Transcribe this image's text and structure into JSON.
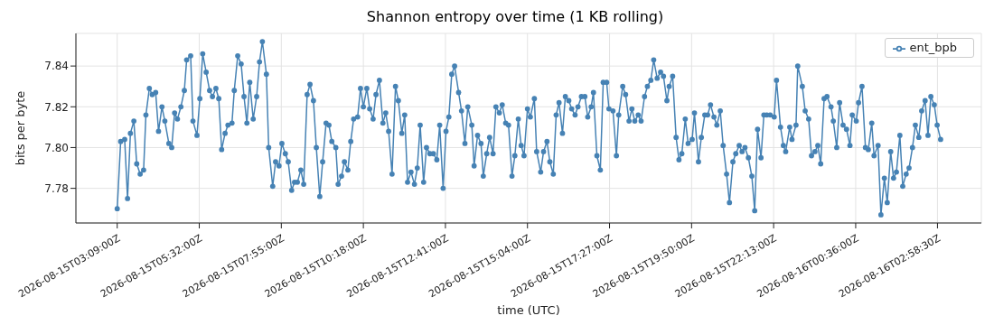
{
  "chart_data": {
    "type": "line",
    "title": "Shannon entropy over time (1 KB rolling)",
    "xlabel": "time (UTC)",
    "ylabel": "bits per byte",
    "x": [
      "2026-08-15T03:09",
      "2026-08-15T03:15",
      "2026-08-15T03:22",
      "2026-08-15T03:27",
      "2026-08-15T03:32",
      "2026-08-15T03:38",
      "2026-08-15T03:43",
      "2026-08-15T03:49",
      "2026-08-15T03:55",
      "2026-08-15T03:59",
      "2026-08-15T04:05",
      "2026-08-15T04:10",
      "2026-08-15T04:16",
      "2026-08-15T04:21",
      "2026-08-15T04:27",
      "2026-08-15T04:32",
      "2026-08-15T04:39",
      "2026-08-15T04:44",
      "2026-08-15T04:49",
      "2026-08-15T04:54",
      "2026-08-15T05:00",
      "2026-08-15T05:06",
      "2026-08-15T05:10",
      "2026-08-15T05:17",
      "2026-08-15T05:21",
      "2026-08-15T05:28",
      "2026-08-15T05:33",
      "2026-08-15T05:38",
      "2026-08-15T05:44",
      "2026-08-15T05:50",
      "2026-08-15T05:55",
      "2026-08-15T06:01",
      "2026-08-15T06:06",
      "2026-08-15T06:11",
      "2026-08-15T06:17",
      "2026-08-15T06:22",
      "2026-08-15T06:29",
      "2026-08-15T06:33",
      "2026-08-15T06:39",
      "2026-08-15T06:45",
      "2026-08-15T06:50",
      "2026-08-15T06:55",
      "2026-08-15T07:00",
      "2026-08-15T07:06",
      "2026-08-15T07:12",
      "2026-08-15T07:17",
      "2026-08-15T07:22",
      "2026-08-15T07:29",
      "2026-08-15T07:33",
      "2026-08-15T07:40",
      "2026-08-15T07:45",
      "2026-08-15T07:51",
      "2026-08-15T07:56",
      "2026-08-15T08:02",
      "2026-08-15T08:07",
      "2026-08-15T08:13",
      "2026-08-15T08:18",
      "2026-08-15T08:23",
      "2026-08-15T08:29",
      "2026-08-15T08:34",
      "2026-08-15T08:40",
      "2026-08-15T08:45",
      "2026-08-15T08:51",
      "2026-08-15T08:56",
      "2026-08-15T09:02",
      "2026-08-15T09:07",
      "2026-08-15T09:13",
      "2026-08-15T09:18",
      "2026-08-15T09:23",
      "2026-08-15T09:30",
      "2026-08-15T09:34",
      "2026-08-15T09:40",
      "2026-08-15T09:45",
      "2026-08-15T09:51",
      "2026-08-15T09:56",
      "2026-08-15T10:01",
      "2026-08-15T10:08",
      "2026-08-15T10:13",
      "2026-08-15T10:18",
      "2026-08-15T10:24",
      "2026-08-15T10:29",
      "2026-08-15T10:35",
      "2026-08-15T10:40",
      "2026-08-15T10:46",
      "2026-08-15T10:52",
      "2026-08-15T10:57",
      "2026-08-15T11:02",
      "2026-08-15T11:08",
      "2026-08-15T11:14",
      "2026-08-15T11:19",
      "2026-08-15T11:25",
      "2026-08-15T11:30",
      "2026-08-15T11:35",
      "2026-08-15T11:41",
      "2026-08-15T11:47",
      "2026-08-15T11:52",
      "2026-08-15T11:57",
      "2026-08-15T12:03",
      "2026-08-15T12:08",
      "2026-08-15T12:14",
      "2026-08-15T12:20",
      "2026-08-15T12:26",
      "2026-08-15T12:31",
      "2026-08-15T12:37",
      "2026-08-15T12:42",
      "2026-08-15T12:47",
      "2026-08-15T12:52",
      "2026-08-15T12:57",
      "2026-08-15T13:04",
      "2026-08-15T13:09",
      "2026-08-15T13:15",
      "2026-08-15T13:20",
      "2026-08-15T13:27",
      "2026-08-15T13:31",
      "2026-08-15T13:37",
      "2026-08-15T13:43",
      "2026-08-15T13:47",
      "2026-08-15T13:53",
      "2026-08-15T13:58",
      "2026-08-15T14:04",
      "2026-08-15T14:09",
      "2026-08-15T14:15",
      "2026-08-15T14:20",
      "2026-08-15T14:26",
      "2026-08-15T14:31",
      "2026-08-15T14:37",
      "2026-08-15T14:42",
      "2026-08-15T14:48",
      "2026-08-15T14:53",
      "2026-08-15T14:58",
      "2026-08-15T15:04",
      "2026-08-15T15:09",
      "2026-08-15T15:16",
      "2026-08-15T15:20",
      "2026-08-15T15:27",
      "2026-08-15T15:32",
      "2026-08-15T15:38",
      "2026-08-15T15:43",
      "2026-08-15T15:49",
      "2026-08-15T15:54",
      "2026-08-15T15:59",
      "2026-08-15T16:05",
      "2026-08-15T16:10",
      "2026-08-15T16:16",
      "2026-08-15T16:21",
      "2026-08-15T16:27",
      "2026-08-15T16:32",
      "2026-08-15T16:38",
      "2026-08-15T16:44",
      "2026-08-15T16:49",
      "2026-08-15T16:55",
      "2026-08-15T16:59",
      "2026-08-15T17:05",
      "2026-08-15T17:11",
      "2026-08-15T17:16",
      "2026-08-15T17:22",
      "2026-08-15T17:26",
      "2026-08-15T17:33",
      "2026-08-15T17:39",
      "2026-08-15T17:43",
      "2026-08-15T17:50",
      "2026-08-15T17:55",
      "2026-08-15T18:01",
      "2026-08-15T18:06",
      "2026-08-15T18:11",
      "2026-08-15T18:17",
      "2026-08-15T18:22",
      "2026-08-15T18:28",
      "2026-08-15T18:33",
      "2026-08-15T18:39",
      "2026-08-15T18:44",
      "2026-08-15T18:50",
      "2026-08-15T18:56",
      "2026-08-15T19:01",
      "2026-08-15T19:07",
      "2026-08-15T19:11",
      "2026-08-15T19:17",
      "2026-08-15T19:23",
      "2026-08-15T19:28",
      "2026-08-15T19:33",
      "2026-08-15T19:39",
      "2026-08-15T19:44",
      "2026-08-15T19:51",
      "2026-08-15T19:55",
      "2026-08-15T20:02",
      "2026-08-15T20:07",
      "2026-08-15T20:13",
      "2026-08-15T20:18",
      "2026-08-15T20:23",
      "2026-08-15T20:29",
      "2026-08-15T20:34",
      "2026-08-15T20:40",
      "2026-08-15T20:45",
      "2026-08-15T20:51",
      "2026-08-15T20:56",
      "2026-08-15T21:02",
      "2026-08-15T21:07",
      "2026-08-15T21:13",
      "2026-08-15T21:18",
      "2026-08-15T21:23",
      "2026-08-15T21:29",
      "2026-08-15T21:35",
      "2026-08-15T21:40",
      "2026-08-15T21:45",
      "2026-08-15T21:51",
      "2026-08-15T21:56",
      "2026-08-15T22:01",
      "2026-08-15T22:07",
      "2026-08-15T22:14",
      "2026-08-15T22:18",
      "2026-08-15T22:25",
      "2026-08-15T22:30",
      "2026-08-15T22:34",
      "2026-08-15T22:41",
      "2026-08-15T22:45",
      "2026-08-15T22:52",
      "2026-08-15T22:55",
      "2026-08-15T23:03",
      "2026-08-15T23:08",
      "2026-08-15T23:14",
      "2026-08-15T23:19",
      "2026-08-15T23:25",
      "2026-08-15T23:30",
      "2026-08-15T23:35",
      "2026-08-15T23:41",
      "2026-08-15T23:46",
      "2026-08-15T23:53",
      "2026-08-15T23:57",
      "2026-08-16T00:03",
      "2026-08-16T00:08",
      "2026-08-16T00:14",
      "2026-08-16T00:20",
      "2026-08-16T00:26",
      "2026-08-16T00:30",
      "2026-08-16T00:37",
      "2026-08-16T00:41",
      "2026-08-16T00:47",
      "2026-08-16T00:53",
      "2026-08-16T00:58",
      "2026-08-16T01:04",
      "2026-08-16T01:08",
      "2026-08-16T01:15",
      "2026-08-16T01:20",
      "2026-08-16T01:26",
      "2026-08-16T01:31",
      "2026-08-16T01:37",
      "2026-08-16T01:42",
      "2026-08-16T01:47",
      "2026-08-16T01:53",
      "2026-08-16T01:58",
      "2026-08-16T02:04",
      "2026-08-16T02:09",
      "2026-08-16T02:15",
      "2026-08-16T02:20",
      "2026-08-16T02:26",
      "2026-08-16T02:31",
      "2026-08-16T02:37",
      "2026-08-16T02:42",
      "2026-08-16T02:47",
      "2026-08-16T02:53",
      "2026-08-16T02:58",
      "2026-08-16T03:04"
    ],
    "series": [
      {
        "name": "ent_bpb",
        "color": "#4682b4",
        "values": [
          7.77,
          7.803,
          7.804,
          7.775,
          7.807,
          7.813,
          7.792,
          7.787,
          7.789,
          7.816,
          7.829,
          7.826,
          7.827,
          7.808,
          7.82,
          7.813,
          7.802,
          7.8,
          7.817,
          7.814,
          7.82,
          7.828,
          7.843,
          7.845,
          7.813,
          7.806,
          7.824,
          7.846,
          7.837,
          7.828,
          7.825,
          7.829,
          7.824,
          7.799,
          7.807,
          7.811,
          7.812,
          7.828,
          7.845,
          7.841,
          7.825,
          7.812,
          7.832,
          7.814,
          7.825,
          7.842,
          7.852,
          7.836,
          7.8,
          7.781,
          7.793,
          7.791,
          7.802,
          7.797,
          7.793,
          7.779,
          7.783,
          7.783,
          7.789,
          7.782,
          7.826,
          7.831,
          7.823,
          7.8,
          7.776,
          7.793,
          7.812,
          7.811,
          7.803,
          7.8,
          7.782,
          7.786,
          7.793,
          7.789,
          7.803,
          7.814,
          7.815,
          7.829,
          7.82,
          7.829,
          7.819,
          7.814,
          7.826,
          7.833,
          7.812,
          7.817,
          7.808,
          7.787,
          7.83,
          7.823,
          7.807,
          7.816,
          7.783,
          7.788,
          7.782,
          7.79,
          7.811,
          7.783,
          7.8,
          7.797,
          7.797,
          7.794,
          7.811,
          7.78,
          7.808,
          7.815,
          7.836,
          7.84,
          7.827,
          7.818,
          7.802,
          7.82,
          7.811,
          7.791,
          7.806,
          7.802,
          7.786,
          7.797,
          7.805,
          7.797,
          7.82,
          7.817,
          7.821,
          7.812,
          7.811,
          7.786,
          7.796,
          7.814,
          7.801,
          7.796,
          7.819,
          7.815,
          7.824,
          7.798,
          7.788,
          7.798,
          7.803,
          7.793,
          7.787,
          7.816,
          7.822,
          7.807,
          7.825,
          7.823,
          7.819,
          7.816,
          7.82,
          7.825,
          7.825,
          7.815,
          7.82,
          7.827,
          7.796,
          7.789,
          7.832,
          7.832,
          7.819,
          7.818,
          7.796,
          7.816,
          7.83,
          7.826,
          7.813,
          7.819,
          7.813,
          7.816,
          7.813,
          7.825,
          7.83,
          7.833,
          7.843,
          7.834,
          7.837,
          7.835,
          7.823,
          7.83,
          7.835,
          7.805,
          7.794,
          7.797,
          7.814,
          7.802,
          7.804,
          7.817,
          7.793,
          7.805,
          7.816,
          7.816,
          7.821,
          7.815,
          7.811,
          7.818,
          7.801,
          7.787,
          7.773,
          7.793,
          7.797,
          7.801,
          7.798,
          7.8,
          7.795,
          7.786,
          7.769,
          7.809,
          7.795,
          7.816,
          7.816,
          7.816,
          7.815,
          7.833,
          7.81,
          7.801,
          7.798,
          7.81,
          7.804,
          7.811,
          7.84,
          7.83,
          7.818,
          7.814,
          7.796,
          7.798,
          7.801,
          7.792,
          7.824,
          7.825,
          7.82,
          7.813,
          7.8,
          7.822,
          7.811,
          7.809,
          7.801,
          7.816,
          7.813,
          7.822,
          7.83,
          7.8,
          7.799,
          7.812,
          7.796,
          7.801,
          7.767,
          7.785,
          7.773,
          7.798,
          7.785,
          7.788,
          7.806,
          7.781,
          7.787,
          7.79,
          7.8,
          7.811,
          7.805,
          7.818,
          7.823,
          7.806,
          7.825,
          7.821,
          7.811,
          7.804
        ]
      }
    ],
    "xlim": [
      "2026-08-15T01:57",
      "2026-08-16T04:15"
    ],
    "xticks": [
      {
        "value": "2026-08-15T03:09",
        "label": "2026-08-15T03:09:00Z"
      },
      {
        "value": "2026-08-15T05:32",
        "label": "2026-08-15T05:32:00Z"
      },
      {
        "value": "2026-08-15T07:55",
        "label": "2026-08-15T07:55:00Z"
      },
      {
        "value": "2026-08-15T10:18",
        "label": "2026-08-15T10:18:00Z"
      },
      {
        "value": "2026-08-15T12:41",
        "label": "2026-08-15T12:41:00Z"
      },
      {
        "value": "2026-08-15T15:04",
        "label": "2026-08-15T15:04:00Z"
      },
      {
        "value": "2026-08-15T17:27",
        "label": "2026-08-15T17:27:00Z"
      },
      {
        "value": "2026-08-15T19:50",
        "label": "2026-08-15T19:50:00Z"
      },
      {
        "value": "2026-08-15T22:13",
        "label": "2026-08-15T22:13:00Z"
      },
      {
        "value": "2026-08-16T00:36",
        "label": "2026-08-16T00:36:00Z"
      },
      {
        "value": "2026-08-16T02:58:30",
        "label": "2026-08-16T02:58:30Z"
      }
    ],
    "ylim": [
      7.763,
      7.856
    ],
    "yticks": [
      {
        "value": 7.78,
        "label": "7.78"
      },
      {
        "value": 7.8,
        "label": "7.80"
      },
      {
        "value": 7.82,
        "label": "7.82"
      },
      {
        "value": 7.84,
        "label": "7.84"
      }
    ],
    "grid": true,
    "legend": "top right",
    "marker": "circle",
    "line_style": "solid"
  }
}
